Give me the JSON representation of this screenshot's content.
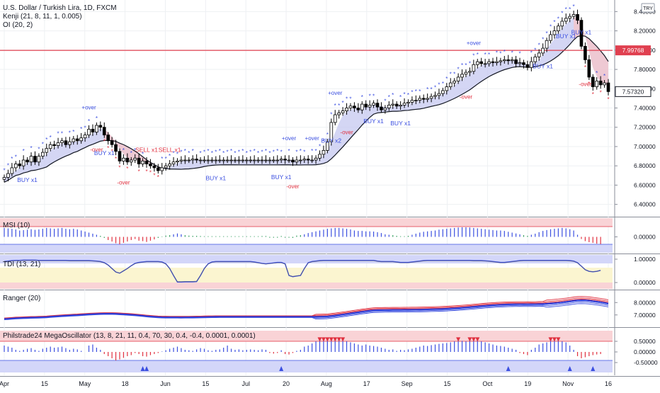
{
  "header": {
    "symbol": "U.S. Dollar / Turkish Lira, 1D, FXCM",
    "study1": "Kenji (21, 8, 11, 1, 0.005)",
    "study2": "OI (20, 2)",
    "currency_badge": "TRY"
  },
  "price_axis": {
    "ticks": [
      "8.40000",
      "8.20000",
      "8.00000",
      "7.80000",
      "7.60000",
      "7.40000",
      "7.20000",
      "7.00000",
      "6.80000",
      "6.60000",
      "6.40000"
    ],
    "hline_label": "7.99768",
    "last_label": "7.57320"
  },
  "panes": {
    "msi": {
      "title": "MSI (10)",
      "ticks": [
        "0.00000"
      ]
    },
    "tdi": {
      "title": "TDI (13, 21)",
      "ticks": [
        "1.00000",
        "0.00000"
      ]
    },
    "ranger": {
      "title": "Ranger (20)",
      "ticks": [
        "8.00000",
        "7.00000"
      ]
    },
    "osc": {
      "title": "Philstrade24 MegaOscillator (13, 8, 21, 11, 0.4, 70, 30, 0.4, -0.4, 0.0001, 0.0001)",
      "ticks": [
        "0.50000",
        "0.00000",
        "-0.50000"
      ]
    }
  },
  "time_axis": [
    "Apr",
    "15",
    "May",
    "18",
    "Jun",
    "15",
    "Jul",
    "20",
    "Aug",
    "17",
    "Sep",
    "15",
    "Oct",
    "19",
    "Nov",
    "16"
  ],
  "signals": {
    "buy": [
      {
        "text": "BUY x1",
        "i": 6
      },
      {
        "text": "BUY x1",
        "i": 26
      },
      {
        "text": "BUY x1",
        "i": 55
      },
      {
        "text": "BUY x1",
        "i": 72
      },
      {
        "text": "BUY x2",
        "i": 85
      },
      {
        "text": "BUY x1",
        "i": 96
      },
      {
        "text": "BUY x1",
        "i": 103
      },
      {
        "text": "BUY x1",
        "i": 140
      },
      {
        "text": "BUY x1",
        "i": 146
      }
    ],
    "sell": [
      {
        "text": "SELL x1",
        "i": 37
      },
      {
        "text": "SELL x1",
        "i": 43
      },
      {
        "text": "BUY x1",
        "i": 150
      }
    ],
    "over_blue": [
      {
        "text": "+over",
        "i": 22
      },
      {
        "text": "+over",
        "i": 74
      },
      {
        "text": "+over",
        "i": 80
      },
      {
        "text": "+over",
        "i": 86
      },
      {
        "text": "+over",
        "i": 122
      }
    ],
    "over_red": [
      {
        "text": "-over",
        "i": 24
      },
      {
        "text": "-over",
        "i": 31
      },
      {
        "text": "-over",
        "i": 75
      },
      {
        "text": "-over",
        "i": 89
      },
      {
        "text": "-over",
        "i": 120
      },
      {
        "text": "-over",
        "i": 151
      }
    ]
  },
  "colors": {
    "up": "#000000",
    "down": "#000000",
    "kenji_band": "#c5c8f0",
    "hline": "#e04050",
    "blue": "#3b4fe0",
    "red": "#e0303f",
    "pink_zone": "#f9d3d6",
    "blue_zone": "#d3d6f9",
    "yellow_zone": "#fbf5d0"
  },
  "chart_data": {
    "type": "candlestick",
    "title": "U.S. Dollar / Turkish Lira, 1D, FXCM",
    "ylim": [
      6.28,
      8.52
    ],
    "close": [
      6.68,
      6.72,
      6.78,
      6.82,
      6.8,
      6.86,
      6.84,
      6.9,
      6.84,
      6.9,
      6.94,
      6.98,
      7.02,
      7.01,
      7.04,
      7.06,
      7.02,
      7.05,
      7.08,
      7.06,
      7.09,
      7.12,
      7.18,
      7.15,
      7.22,
      7.2,
      7.12,
      7.06,
      7.02,
      6.95,
      6.85,
      6.88,
      6.84,
      6.86,
      6.88,
      6.82,
      6.85,
      6.82,
      6.8,
      6.78,
      6.75,
      6.78,
      6.8,
      6.82,
      6.84,
      6.85,
      6.86,
      6.86,
      6.86,
      6.87,
      6.86,
      6.86,
      6.86,
      6.86,
      6.86,
      6.86,
      6.86,
      6.86,
      6.86,
      6.86,
      6.86,
      6.86,
      6.86,
      6.86,
      6.86,
      6.86,
      6.86,
      6.86,
      6.86,
      6.86,
      6.86,
      6.86,
      6.87,
      6.86,
      6.86,
      6.84,
      6.86,
      6.86,
      6.87,
      6.86,
      6.86,
      6.88,
      6.92,
      6.96,
      7.05,
      7.25,
      7.33,
      7.35,
      7.37,
      7.4,
      7.42,
      7.4,
      7.38,
      7.44,
      7.41,
      7.43,
      7.45,
      7.41,
      7.38,
      7.4,
      7.43,
      7.44,
      7.42,
      7.43,
      7.45,
      7.46,
      7.48,
      7.48,
      7.5,
      7.49,
      7.5,
      7.52,
      7.53,
      7.55,
      7.58,
      7.62,
      7.66,
      7.68,
      7.72,
      7.75,
      7.77,
      7.78,
      7.85,
      7.88,
      7.86,
      7.86,
      7.88,
      7.87,
      7.88,
      7.89,
      7.9,
      7.89,
      7.9,
      7.86,
      7.87,
      7.85,
      7.82,
      7.88,
      7.93,
      7.97,
      8.02,
      8.1,
      8.16,
      8.2,
      8.25,
      8.3,
      8.33,
      8.35,
      8.37,
      8.31,
      8.04,
      7.9,
      7.72,
      7.62,
      7.68,
      7.64,
      7.66,
      7.57
    ],
    "series": [
      {
        "name": "MSI",
        "values": [
          0.42,
          0.4,
          0.38,
          0.35,
          0.3,
          0.32,
          0.34,
          0.36,
          0.33,
          0.35,
          0.38,
          0.42,
          0.4,
          0.38,
          0.4,
          0.42,
          0.38,
          0.36,
          0.38,
          0.35,
          0.3,
          0.25,
          0.2,
          0.15,
          0.1,
          0.05,
          -0.05,
          -0.15,
          -0.22,
          -0.3,
          -0.35,
          -0.28,
          -0.22,
          -0.15,
          -0.1,
          -0.18,
          -0.2,
          -0.24,
          -0.18,
          -0.12,
          -0.05,
          0.02,
          0.06,
          0.08,
          0.12,
          0.16,
          0.12,
          0.08,
          0.06,
          0.05,
          0.05,
          0.04,
          0.03,
          0.03,
          0.03,
          0.03,
          0.03,
          0.03,
          0.03,
          0.03,
          0.03,
          0.03,
          0.03,
          0.03,
          0.03,
          0.03,
          0.03,
          0.04,
          0.04,
          -0.04,
          -0.04,
          -0.04,
          0.04,
          -0.04,
          -0.04,
          -0.05,
          0.06,
          0.08,
          0.12,
          0.18,
          0.22,
          0.26,
          0.3,
          0.34,
          0.38,
          0.4,
          0.42,
          0.42,
          0.4,
          0.38,
          0.35,
          0.3,
          0.28,
          0.28,
          0.26,
          0.26,
          0.25,
          0.22,
          0.18,
          0.12,
          0.1,
          0.08,
          0.05,
          0.03,
          0.03,
          0.05,
          0.1,
          0.15,
          0.2,
          0.24,
          0.26,
          0.28,
          0.3,
          0.34,
          0.36,
          0.38,
          0.4,
          0.42,
          0.44,
          0.45,
          0.45,
          0.44,
          0.42,
          0.4,
          0.38,
          0.36,
          0.34,
          0.32,
          0.3,
          0.3,
          0.28,
          0.24,
          0.2,
          0.16,
          0.12,
          0.08,
          0.05,
          0.1,
          0.15,
          0.22,
          0.28,
          0.32,
          0.36,
          0.38,
          0.4,
          0.42,
          0.4,
          0.36,
          0.3,
          0.1,
          -0.1,
          -0.2,
          -0.25,
          -0.28,
          -0.32,
          -0.34
        ]
      },
      {
        "name": "TDI",
        "values": [
          0.9,
          0.92,
          0.94,
          0.95,
          0.95,
          0.96,
          0.96,
          0.96,
          0.96,
          0.95,
          0.95,
          0.95,
          0.95,
          0.95,
          0.95,
          0.95,
          0.95,
          0.94,
          0.94,
          0.94,
          0.94,
          0.94,
          0.94,
          0.93,
          0.92,
          0.9,
          0.85,
          0.75,
          0.6,
          0.45,
          0.4,
          0.5,
          0.6,
          0.72,
          0.82,
          0.86,
          0.88,
          0.9,
          0.9,
          0.9,
          0.9,
          0.88,
          0.8,
          0.6,
          0.3,
          0.02,
          0.02,
          0.03,
          0.03,
          0.03,
          0.04,
          0.3,
          0.6,
          0.8,
          0.88,
          0.9,
          0.9,
          0.9,
          0.9,
          0.9,
          0.9,
          0.9,
          0.9,
          0.9,
          0.9,
          0.88,
          0.85,
          0.82,
          0.8,
          0.82,
          0.84,
          0.86,
          0.86,
          0.8,
          0.3,
          0.25,
          0.28,
          0.3,
          0.6,
          0.85,
          0.9,
          0.92,
          0.94,
          0.95,
          0.95,
          0.95,
          0.95,
          0.95,
          0.95,
          0.95,
          0.95,
          0.95,
          0.95,
          0.95,
          0.95,
          0.95,
          0.95,
          0.92,
          0.9,
          0.9,
          0.9,
          0.9,
          0.88,
          0.86,
          0.86,
          0.86,
          0.88,
          0.9,
          0.92,
          0.94,
          0.95,
          0.95,
          0.95,
          0.95,
          0.95,
          0.95,
          0.95,
          0.95,
          0.95,
          0.95,
          0.95,
          0.95,
          0.94,
          0.94,
          0.94,
          0.93,
          0.92,
          0.9,
          0.88,
          0.86,
          0.86,
          0.88,
          0.9,
          0.92,
          0.94,
          0.95,
          0.95,
          0.95,
          0.95,
          0.95,
          0.95,
          0.95,
          0.95,
          0.95,
          0.95,
          0.95,
          0.95,
          0.94,
          0.92,
          0.85,
          0.7,
          0.55,
          0.48,
          0.46,
          0.48,
          0.52
        ]
      },
      {
        "name": "MegaOscillator",
        "values": [
          0.3,
          0.25,
          0.2,
          0.1,
          0.05,
          0.1,
          0.15,
          0.18,
          0.1,
          0.05,
          0.15,
          0.2,
          0.25,
          0.2,
          0.22,
          0.25,
          0.18,
          0.1,
          0.15,
          0.12,
          0.05,
          0.0,
          0.3,
          0.35,
          0.2,
          0.1,
          -0.1,
          -0.2,
          -0.3,
          -0.4,
          -0.35,
          -0.28,
          -0.2,
          -0.15,
          -0.05,
          -0.1,
          -0.2,
          -0.22,
          -0.15,
          -0.1,
          -0.05,
          0.02,
          0.08,
          0.15,
          0.2,
          0.25,
          0.18,
          0.1,
          0.08,
          0.05,
          0.12,
          0.18,
          0.15,
          0.08,
          0.05,
          0.1,
          0.12,
          0.2,
          0.3,
          0.15,
          0.1,
          0.12,
          0.08,
          0.1,
          0.12,
          0.1,
          0.08,
          0.12,
          0.1,
          -0.05,
          -0.08,
          -0.05,
          0.08,
          -0.1,
          -0.12,
          -0.05,
          0.05,
          0.1,
          0.25,
          0.3,
          0.4,
          0.5,
          0.55,
          0.6,
          0.62,
          0.55,
          0.6,
          0.6,
          0.55,
          0.5,
          0.45,
          0.4,
          0.35,
          0.3,
          0.35,
          0.3,
          0.28,
          0.25,
          0.2,
          0.15,
          0.1,
          0.12,
          0.05,
          0.1,
          0.08,
          0.12,
          0.15,
          0.2,
          0.25,
          0.3,
          0.28,
          0.32,
          0.35,
          0.38,
          0.4,
          0.42,
          0.45,
          0.5,
          0.55,
          0.52,
          0.5,
          0.55,
          0.6,
          0.55,
          0.5,
          0.45,
          0.4,
          0.35,
          0.3,
          0.28,
          0.25,
          0.2,
          0.15,
          0.1,
          -0.05,
          -0.1,
          -0.15,
          0.1,
          0.2,
          0.35,
          0.4,
          0.45,
          0.55,
          0.6,
          0.55,
          0.5,
          0.45,
          0.3,
          0.1,
          -0.2,
          -0.3,
          -0.25,
          -0.2,
          -0.15,
          -0.12,
          -0.1
        ]
      }
    ]
  }
}
